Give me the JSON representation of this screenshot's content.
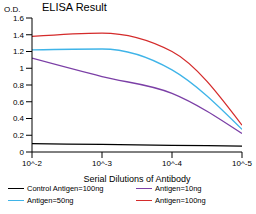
{
  "chart_data": {
    "type": "line",
    "title": "ELISA Result",
    "y_label": "O.D.",
    "x_label": "Serial Dilutions of Antibody",
    "log": "x",
    "grid": false,
    "legend": "bottom",
    "x": [
      0.01,
      0.001,
      0.0001,
      1e-05
    ],
    "xlim": [
      0.01,
      1e-05
    ],
    "xticks": [
      {
        "value": 0.01,
        "label": "10^-2"
      },
      {
        "value": 0.001,
        "label": "10^-3"
      },
      {
        "value": 0.0001,
        "label": "10^-4"
      },
      {
        "value": 1e-05,
        "label": "10^-5"
      }
    ],
    "ylim": [
      0,
      1.6
    ],
    "yticks": [
      0,
      0.2,
      0.4,
      0.6,
      0.8,
      1,
      1.2,
      1.4,
      1.6
    ],
    "series": [
      {
        "name": "Control Antigen=100ng",
        "color": "#000000",
        "values": [
          0.1,
          0.09,
          0.08,
          0.07
        ]
      },
      {
        "name": "Antigen=10ng",
        "color": "#7b3fa6",
        "values": [
          1.12,
          0.9,
          0.7,
          0.22
        ]
      },
      {
        "name": "Antigen=50ng",
        "color": "#3fb4e8",
        "values": [
          1.22,
          1.23,
          0.98,
          0.27
        ]
      },
      {
        "name": "Antigen=100ng",
        "color": "#d42b2b",
        "values": [
          1.38,
          1.42,
          1.2,
          0.32
        ]
      }
    ]
  }
}
